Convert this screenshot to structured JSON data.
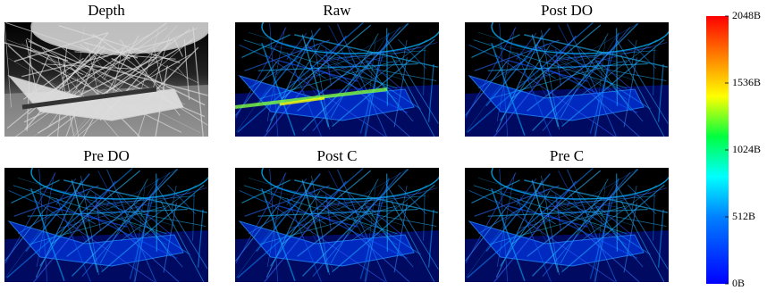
{
  "panels": [
    {
      "title": "Depth"
    },
    {
      "title": "Raw"
    },
    {
      "title": "Post DO"
    },
    {
      "title": "Pre DO"
    },
    {
      "title": "Post C"
    },
    {
      "title": "Pre C"
    }
  ],
  "colorbar": {
    "range": [
      0,
      2048
    ],
    "ticks": [
      {
        "value": 0,
        "label": "0B"
      },
      {
        "value": 512,
        "label": "512B"
      },
      {
        "value": 1024,
        "label": "1024B"
      },
      {
        "value": 1536,
        "label": "1536B"
      },
      {
        "value": 2048,
        "label": "2048B"
      }
    ]
  }
}
